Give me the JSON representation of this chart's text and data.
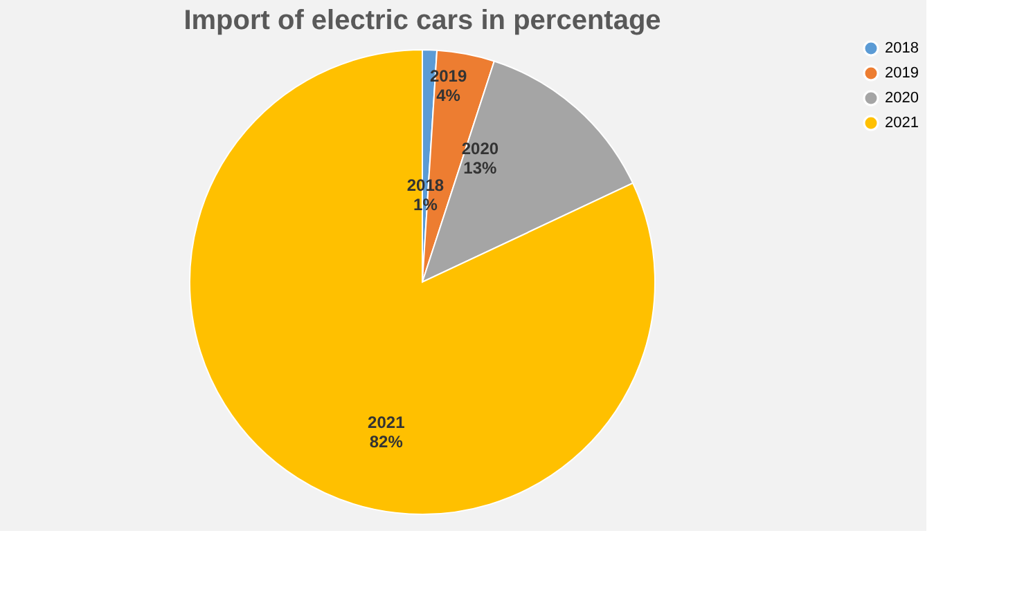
{
  "chart_data": {
    "type": "pie",
    "title": "Import of electric cars in percentage",
    "categories": [
      "2018",
      "2019",
      "2020",
      "2021"
    ],
    "values": [
      1,
      4,
      13,
      82
    ],
    "value_labels": [
      "1%",
      "4%",
      "13%",
      "82%"
    ],
    "colors": [
      "#5b9bd5",
      "#ed7d31",
      "#a5a5a5",
      "#ffc000"
    ],
    "legend": "right"
  }
}
